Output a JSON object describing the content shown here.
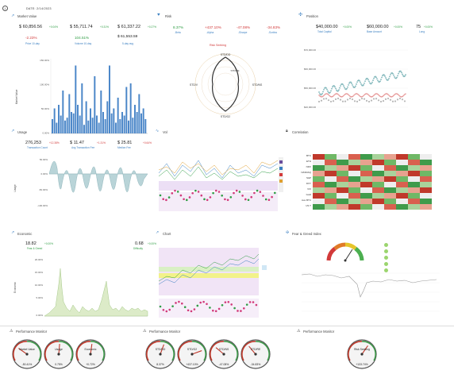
{
  "header": {
    "menu_icon": "circle-one-icon",
    "date_label": "DATE: 2/14/2023"
  },
  "panels": {
    "market_value": {
      "title": "Market Value",
      "stats": [
        {
          "value": "$ 60,856.56",
          "delta": "+0.04%",
          "sub": "-2.23%",
          "sub2": "Price 10-day"
        },
        {
          "value": "$ 55,711.74",
          "delta": "+0.31%",
          "sub": "104.51%",
          "sub2": "Volume 10-day"
        },
        {
          "value": "$ 61,337.22",
          "delta": "+0.27%",
          "sub": "$ 61,553.59",
          "sub2": "5-day avg"
        }
      ],
      "ylabel": "Market Value",
      "yticks": [
        "150.00%",
        "100.00%",
        "50.00%",
        "0.00%"
      ],
      "chart_data": {
        "type": "bar",
        "values": [
          20,
          35,
          15,
          40,
          25,
          60,
          18,
          22,
          55,
          30,
          28,
          95,
          40,
          25,
          70,
          12,
          45,
          18,
          35,
          22,
          80,
          25,
          15,
          60,
          30,
          20,
          45,
          95,
          28,
          35,
          15,
          50,
          20,
          30,
          25,
          65,
          18,
          70,
          22,
          40,
          30,
          55,
          28,
          35,
          20
        ]
      }
    },
    "risk": {
      "title": "Risk",
      "stats": [
        {
          "value": "8.37%",
          "delta": "-Beta"
        },
        {
          "value": "+437.10%",
          "delta": "-Alpha"
        },
        {
          "value": "-47.08%",
          "delta": "-Sharpe"
        },
        {
          "value": "-34.83%",
          "delta": "-Sortino"
        }
      ],
      "risk_label": "Risk Seeking",
      "axes": [
        "STD/DD",
        "STD/NS",
        "STD/G2",
        "STD/V",
        "STD/RE"
      ]
    },
    "position": {
      "title": "Position",
      "stats": [
        {
          "value": "$40,000.00",
          "delta": "+0.00%",
          "sub": "Total Capital"
        },
        {
          "value": "$60,000.00",
          "delta": "+0.00%",
          "sub": "Base Amount"
        },
        {
          "value": "75",
          "delta": "+0.00%",
          "sub": "Long"
        }
      ],
      "yticks": [
        "$70,000.00",
        "$60,000.00",
        "$50,000.00",
        "$40,000.00"
      ]
    },
    "usage": {
      "title": "Usage",
      "stats": [
        {
          "value": "276,253",
          "delta": "+12.38%",
          "sub": "Transaction Count"
        },
        {
          "value": "$ 11.47",
          "delta": "+1.31%",
          "sub": "Avg Transaction Fee"
        },
        {
          "value": "$ 25.81",
          "delta": "+0.64%",
          "sub": "Median Fee"
        }
      ],
      "ylabel": "Usage",
      "yticks": [
        "50.00%",
        "0.00%",
        "-50.00%",
        "-100.00%"
      ]
    },
    "vol": {
      "title": "Vol"
    },
    "correlation": {
      "title": "Correlation",
      "rows": [
        "BTC",
        "ETH",
        "NDX",
        "NASDAQ",
        "S&P",
        "DXY",
        "VIX",
        "Gold",
        "Ave BTC",
        "US T"
      ]
    },
    "economic": {
      "title": "Economic",
      "stats": [
        {
          "value": "18.82",
          "delta": "+0.00%",
          "sub": "Fear & Greed"
        },
        {
          "value": "0.68",
          "delta": "+0.00%",
          "sub": "Difficulty"
        }
      ],
      "ylabel": "Economic",
      "yticks": [
        "20.00%",
        "15.00%",
        "10.00%",
        "5.00%",
        "0.00%"
      ]
    },
    "chart": {
      "title": "Chart"
    },
    "fear_greed": {
      "title": "Fear & Greed Index"
    }
  },
  "monitors": [
    {
      "title": "Performance Monitor",
      "gauges": [
        {
          "label": "Market Value",
          "value": "-50.41%",
          "needle": -55
        },
        {
          "label": "Usage",
          "value": "0.75%",
          "needle": 5
        },
        {
          "label": "Economic",
          "value": "+0.72%",
          "needle": 8
        }
      ]
    },
    {
      "title": "Performance Monitor",
      "gauges": [
        {
          "label": "STD/DD",
          "value": "8.37%",
          "needle": 20
        },
        {
          "label": "STD/G2",
          "value": "+437.10%",
          "needle": 70
        },
        {
          "label": "STD/NS",
          "value": "-47.08%",
          "needle": -50
        },
        {
          "label": "STD/RE",
          "value": "-34.83%",
          "needle": -40
        }
      ]
    },
    {
      "title": "Performance Monitor",
      "gauges": [
        {
          "label": "Risk Seeking",
          "value": "+133.74%",
          "needle": 35
        }
      ]
    }
  ],
  "colors": {
    "accent": "#3a7fc1",
    "green": "#2e9d43",
    "red": "#d23a3a",
    "bar": "#4a86c8"
  }
}
